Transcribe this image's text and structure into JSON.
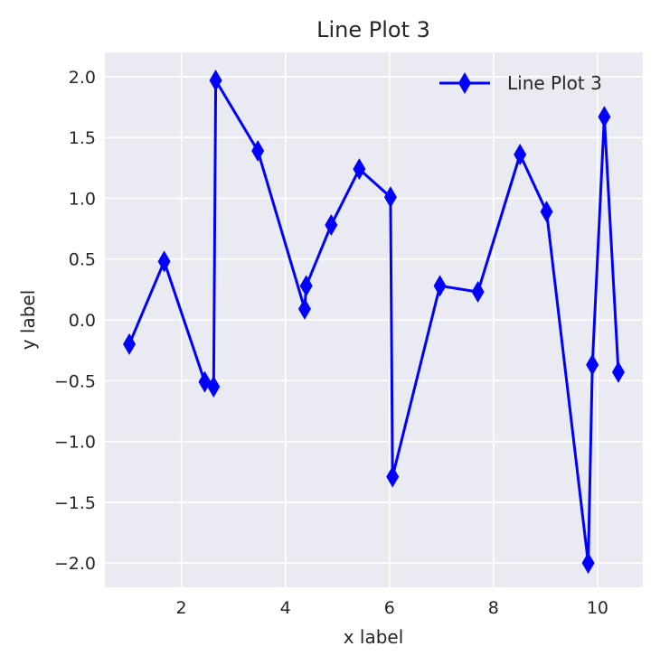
{
  "chart_data": {
    "type": "line",
    "title": "Line Plot 3",
    "xlabel": "x label",
    "ylabel": "y label",
    "xlim": [
      0.53,
      10.87
    ],
    "ylim": [
      -2.2,
      2.2
    ],
    "xticks": [
      2,
      4,
      6,
      8,
      10
    ],
    "yticks": [
      -2.0,
      -1.5,
      -1.0,
      -0.5,
      0.0,
      0.5,
      1.0,
      1.5,
      2.0
    ],
    "xtick_labels": [
      "2",
      "4",
      "6",
      "8",
      "10"
    ],
    "ytick_labels": [
      "−2.0",
      "−1.5",
      "−1.0",
      "−0.5",
      "0.0",
      "0.5",
      "1.0",
      "1.5",
      "2.0"
    ],
    "grid": true,
    "legend_position": "top-right",
    "series": [
      {
        "name": "Line Plot 3",
        "color": "#0000ff",
        "marker": "thin-diamond",
        "x": [
          1.0,
          1.67,
          2.45,
          2.62,
          2.66,
          3.47,
          4.37,
          4.4,
          4.88,
          5.42,
          6.02,
          6.06,
          6.97,
          7.7,
          8.51,
          9.02,
          9.82,
          9.9,
          10.13,
          10.4
        ],
        "y": [
          -0.2,
          0.48,
          -0.51,
          -0.55,
          1.97,
          1.39,
          0.09,
          0.28,
          0.78,
          1.24,
          1.01,
          -1.29,
          0.28,
          0.23,
          1.36,
          0.89,
          -2.0,
          -0.37,
          1.67,
          -0.43
        ]
      }
    ]
  }
}
